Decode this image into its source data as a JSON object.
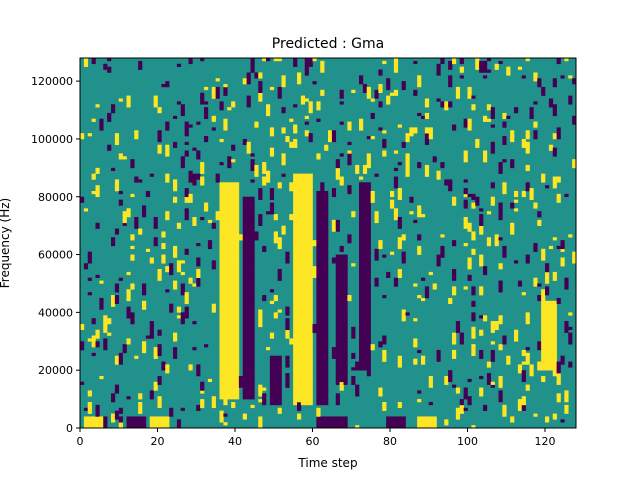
{
  "figure": {
    "title": "Predicted : Gma",
    "xlabel": "Time step",
    "ylabel": "Frequency (Hz)"
  },
  "chart_data": {
    "type": "heatmap",
    "title": "Predicted : Gma",
    "xlabel": "Time step",
    "ylabel": "Frequency (Hz)",
    "xlim": [
      0,
      128
    ],
    "ylim": [
      0,
      128000
    ],
    "x_ticks": [
      "0",
      "20",
      "40",
      "60",
      "80",
      "100",
      "120"
    ],
    "y_ticks": [
      "0",
      "20000",
      "40000",
      "60000",
      "80000",
      "100000",
      "120000"
    ],
    "grid": false,
    "legend": "none",
    "cells_x": 128,
    "cells_y": 128,
    "colormap": {
      "low": "#440154",
      "mid": "#21918c",
      "high": "#fde725"
    },
    "background_value": 0,
    "value_levels": [
      -1,
      0,
      1
    ],
    "high_bands": [
      {
        "x": [
          36,
          40
        ],
        "y": [
          10000,
          85000
        ]
      },
      {
        "x": [
          55,
          59
        ],
        "y": [
          8000,
          88000
        ]
      },
      {
        "x": [
          119,
          122
        ],
        "y": [
          20000,
          44000
        ]
      },
      {
        "x": [
          1,
          5
        ],
        "y": [
          0,
          4000
        ]
      },
      {
        "x": [
          18,
          22
        ],
        "y": [
          0,
          4000
        ]
      },
      {
        "x": [
          87,
          91
        ],
        "y": [
          0,
          4000
        ]
      }
    ],
    "low_bands": [
      {
        "x": [
          42,
          44
        ],
        "y": [
          10000,
          80000
        ]
      },
      {
        "x": [
          49,
          51
        ],
        "y": [
          8000,
          25000
        ]
      },
      {
        "x": [
          61,
          63
        ],
        "y": [
          8000,
          82000
        ]
      },
      {
        "x": [
          66,
          68
        ],
        "y": [
          15000,
          60000
        ]
      },
      {
        "x": [
          72,
          74
        ],
        "y": [
          20000,
          85000
        ]
      },
      {
        "x": [
          12,
          16
        ],
        "y": [
          0,
          4000
        ]
      },
      {
        "x": [
          61,
          68
        ],
        "y": [
          0,
          4000
        ]
      },
      {
        "x": [
          79,
          83
        ],
        "y": [
          0,
          4000
        ]
      }
    ],
    "scatter_density": 0.05,
    "seed": 7
  }
}
